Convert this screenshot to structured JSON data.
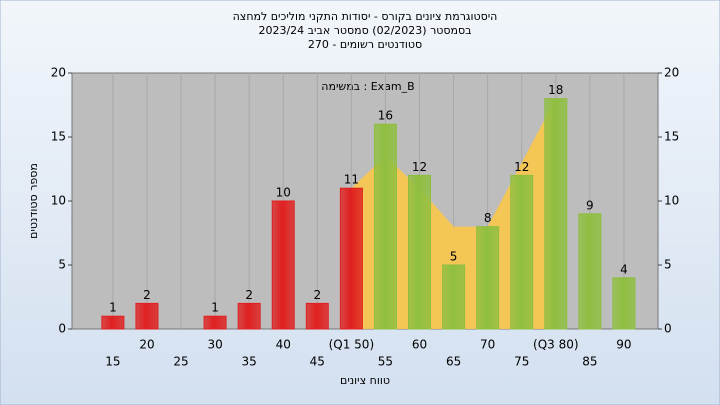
{
  "chart_data": {
    "type": "bar",
    "title": "היסטוגרמת ציונים בקורס - יסודות התקני מוליכים למחצה",
    "subtitle": "בסמסטר  (02/2023)  סמסטר אביב 2023/24",
    "subtitle2": "סטודנטים רשומים - 270",
    "annotation": "במשימה : Exam_B",
    "x_label": "טווח ציונים",
    "y_label": "מספר סטודנטים",
    "x": [
      15,
      20,
      25,
      30,
      35,
      40,
      45,
      50,
      55,
      60,
      65,
      70,
      75,
      80,
      85,
      90
    ],
    "values": [
      1,
      2,
      0,
      1,
      2,
      10,
      2,
      11,
      16,
      12,
      5,
      8,
      12,
      18,
      9,
      4
    ],
    "value_labels": [
      "1",
      "2",
      null,
      "1",
      "2",
      "10",
      "2",
      "11",
      "16",
      "12",
      "5",
      "8",
      "12",
      "18",
      "9",
      "4"
    ],
    "colors": [
      "#e02020",
      "#e02020",
      "#e02020",
      "#e02020",
      "#e02020",
      "#e02020",
      "#e02020",
      "#e02020",
      "#8fbf40",
      "#8fbf40",
      "#8fbf40",
      "#8fbf40",
      "#8fbf40",
      "#8fbf40",
      "#8fbf40",
      "#8fbf40"
    ],
    "area": {
      "x": [
        50,
        55,
        60,
        65,
        70,
        75,
        80
      ],
      "values": [
        11,
        13.5,
        11,
        8,
        8,
        13,
        18
      ],
      "color": "#f9c64a"
    },
    "xlim": [
      9,
      95
    ],
    "xticks": [
      15,
      20,
      25,
      30,
      35,
      40,
      45,
      {
        "value": 50,
        "label": "(Q1 50)"
      },
      55,
      60,
      65,
      70,
      75,
      {
        "value": 80,
        "label": "(Q3 80)"
      },
      85,
      90
    ],
    "ylim": [
      0,
      20
    ],
    "yticks": [
      0,
      5,
      10,
      15,
      20
    ],
    "y2lim": [
      0,
      20
    ],
    "y2ticks": [
      0,
      5,
      10,
      15,
      20
    ],
    "xgrid": true
  }
}
